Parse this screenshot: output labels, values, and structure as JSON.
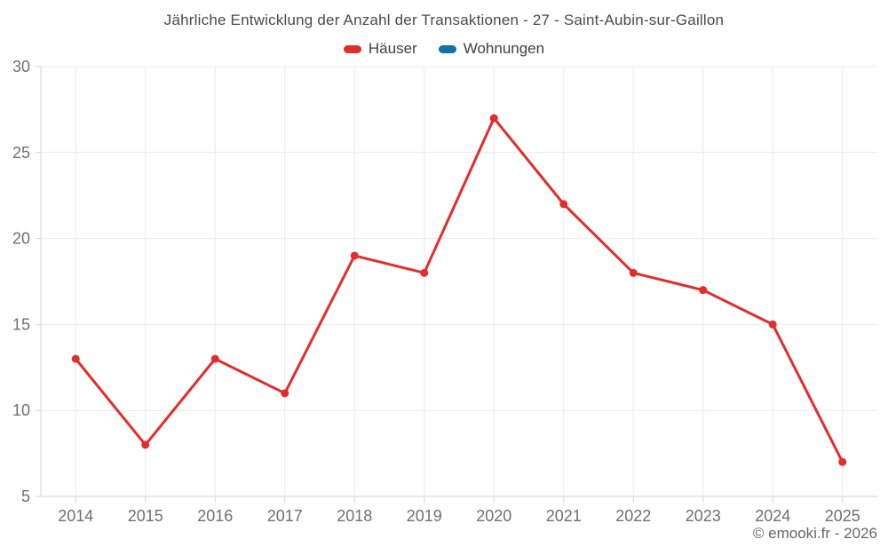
{
  "title": "Jährliche Entwicklung der Anzahl der Transaktionen - 27 - Saint-Aubin-sur-Gaillon",
  "footer": "© emooki.fr - 2026",
  "chart_data": {
    "type": "line",
    "title": "Jährliche Entwicklung der Anzahl der Transaktionen - 27 - Saint-Aubin-sur-Gaillon",
    "categories": [
      "2014",
      "2015",
      "2016",
      "2017",
      "2018",
      "2019",
      "2020",
      "2021",
      "2022",
      "2023",
      "2024",
      "2025"
    ],
    "series": [
      {
        "name": "Häuser",
        "color": "#e22d2d",
        "values": [
          13,
          8,
          13,
          11,
          19,
          18,
          27,
          22,
          18,
          17,
          15,
          7
        ]
      },
      {
        "name": "Wohnungen",
        "color": "#1272a5",
        "values": []
      }
    ],
    "xlabel": "",
    "ylabel": "",
    "ylim": [
      5,
      30
    ],
    "ytick_step": 5,
    "grid": true,
    "legend_position": "top",
    "marker_radius": 4.5,
    "line_width": 3
  }
}
